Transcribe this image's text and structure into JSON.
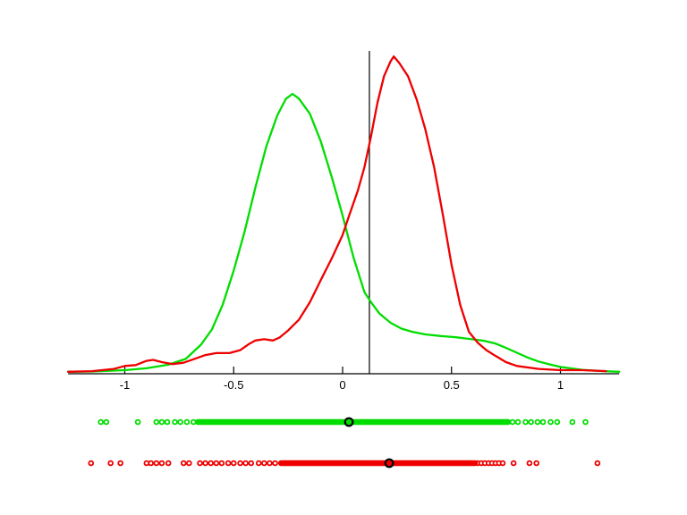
{
  "figure": {
    "background": "#ffffff",
    "axis_color": "#000000"
  },
  "chart_data": {
    "type": "line",
    "title": "",
    "xlabel": "",
    "ylabel": "",
    "xlim": [
      -1.26,
      1.27
    ],
    "ylim": [
      0,
      1.0
    ],
    "grid": false,
    "legend": null,
    "x_ticks": [
      {
        "value": -1,
        "label": "-1"
      },
      {
        "value": -0.5,
        "label": "-0.5"
      },
      {
        "value": 0,
        "label": "0"
      },
      {
        "value": 0.5,
        "label": "0.5"
      },
      {
        "value": 1,
        "label": "1"
      }
    ],
    "vline": {
      "x": 0.123,
      "y_top": 1.0,
      "color": "#000000"
    },
    "series": [
      {
        "name": "green-density",
        "color": "#00dd00",
        "points": [
          [
            -1.26,
            0.006
          ],
          [
            -1.15,
            0.007
          ],
          [
            -1.0,
            0.011
          ],
          [
            -0.9,
            0.017
          ],
          [
            -0.8,
            0.028
          ],
          [
            -0.72,
            0.046
          ],
          [
            -0.65,
            0.09
          ],
          [
            -0.6,
            0.137
          ],
          [
            -0.55,
            0.215
          ],
          [
            -0.5,
            0.32
          ],
          [
            -0.45,
            0.44
          ],
          [
            -0.4,
            0.578
          ],
          [
            -0.35,
            0.705
          ],
          [
            -0.3,
            0.8
          ],
          [
            -0.26,
            0.852
          ],
          [
            -0.23,
            0.867
          ],
          [
            -0.2,
            0.852
          ],
          [
            -0.15,
            0.805
          ],
          [
            -0.1,
            0.72
          ],
          [
            -0.05,
            0.61
          ],
          [
            0.0,
            0.49
          ],
          [
            0.05,
            0.36
          ],
          [
            0.1,
            0.253
          ],
          [
            0.13,
            0.222
          ],
          [
            0.17,
            0.186
          ],
          [
            0.22,
            0.158
          ],
          [
            0.27,
            0.14
          ],
          [
            0.32,
            0.13
          ],
          [
            0.38,
            0.122
          ],
          [
            0.45,
            0.117
          ],
          [
            0.52,
            0.113
          ],
          [
            0.58,
            0.108
          ],
          [
            0.65,
            0.102
          ],
          [
            0.7,
            0.094
          ],
          [
            0.75,
            0.08
          ],
          [
            0.8,
            0.065
          ],
          [
            0.85,
            0.05
          ],
          [
            0.9,
            0.038
          ],
          [
            0.95,
            0.029
          ],
          [
            1.0,
            0.021
          ],
          [
            1.1,
            0.012
          ],
          [
            1.2,
            0.008
          ],
          [
            1.27,
            0.006
          ]
        ]
      },
      {
        "name": "red-density",
        "color": "#ee0000",
        "points": [
          [
            -1.26,
            0.006
          ],
          [
            -1.15,
            0.008
          ],
          [
            -1.05,
            0.015
          ],
          [
            -1.0,
            0.024
          ],
          [
            -0.95,
            0.027
          ],
          [
            -0.9,
            0.04
          ],
          [
            -0.87,
            0.043
          ],
          [
            -0.83,
            0.036
          ],
          [
            -0.78,
            0.03
          ],
          [
            -0.73,
            0.034
          ],
          [
            -0.68,
            0.046
          ],
          [
            -0.63,
            0.058
          ],
          [
            -0.58,
            0.064
          ],
          [
            -0.52,
            0.064
          ],
          [
            -0.47,
            0.073
          ],
          [
            -0.43,
            0.092
          ],
          [
            -0.4,
            0.103
          ],
          [
            -0.36,
            0.107
          ],
          [
            -0.32,
            0.103
          ],
          [
            -0.29,
            0.112
          ],
          [
            -0.25,
            0.134
          ],
          [
            -0.2,
            0.168
          ],
          [
            -0.15,
            0.222
          ],
          [
            -0.1,
            0.29
          ],
          [
            -0.05,
            0.357
          ],
          [
            0.0,
            0.43
          ],
          [
            0.03,
            0.49
          ],
          [
            0.07,
            0.567
          ],
          [
            0.1,
            0.64
          ],
          [
            0.13,
            0.735
          ],
          [
            0.16,
            0.84
          ],
          [
            0.19,
            0.922
          ],
          [
            0.22,
            0.968
          ],
          [
            0.235,
            0.983
          ],
          [
            0.26,
            0.963
          ],
          [
            0.3,
            0.922
          ],
          [
            0.34,
            0.85
          ],
          [
            0.38,
            0.757
          ],
          [
            0.42,
            0.64
          ],
          [
            0.46,
            0.494
          ],
          [
            0.5,
            0.337
          ],
          [
            0.54,
            0.213
          ],
          [
            0.58,
            0.13
          ],
          [
            0.62,
            0.096
          ],
          [
            0.66,
            0.073
          ],
          [
            0.7,
            0.056
          ],
          [
            0.75,
            0.036
          ],
          [
            0.8,
            0.024
          ],
          [
            0.9,
            0.015
          ],
          [
            1.0,
            0.011
          ],
          [
            1.1,
            0.011
          ],
          [
            1.21,
            0.008
          ]
        ]
      }
    ],
    "rugs": [
      {
        "name": "green-samples",
        "color": "#00dd00",
        "solid_range": [
          -0.665,
          0.76
        ],
        "dots": [
          -1.11,
          -1.085,
          -0.94,
          -0.855,
          -0.83,
          -0.805,
          -0.77,
          -0.745,
          -0.715,
          -0.685,
          0.78,
          0.805,
          0.84,
          0.865,
          0.895,
          0.92,
          0.955,
          0.985,
          1.055,
          1.115
        ],
        "highlight": 0.029
      },
      {
        "name": "red-samples",
        "color": "#ee0000",
        "solid_range": [
          -0.283,
          0.608
        ],
        "dots": [
          -1.155,
          -1.065,
          -1.02,
          -0.9,
          -0.88,
          -0.855,
          -0.83,
          -0.8,
          -0.73,
          -0.705,
          -0.655,
          -0.63,
          -0.605,
          -0.58,
          -0.555,
          -0.525,
          -0.5,
          -0.47,
          -0.445,
          -0.42,
          -0.385,
          -0.36,
          -0.335,
          -0.31,
          0.62,
          0.637,
          0.653,
          0.67,
          0.686,
          0.702,
          0.718,
          0.735,
          0.785,
          0.858,
          0.89,
          1.17
        ],
        "highlight": 0.214
      }
    ]
  }
}
